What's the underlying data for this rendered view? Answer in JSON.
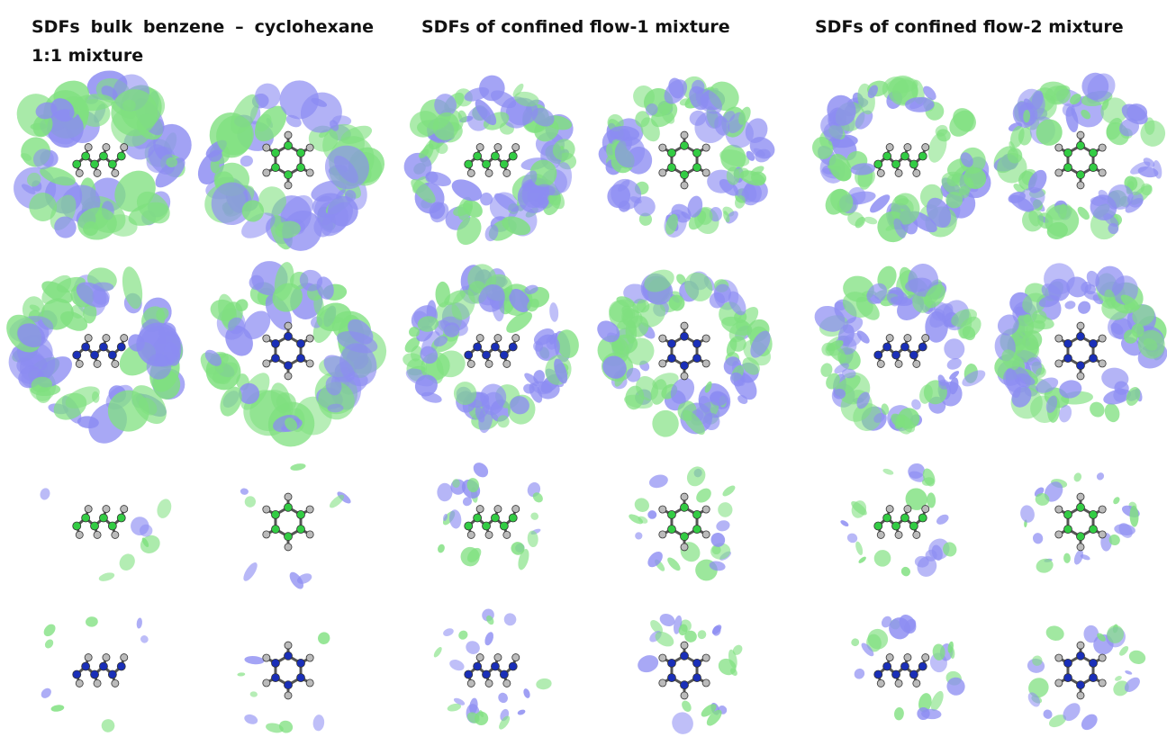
{
  "titles": [
    "SDFs bulk benzene – cyclohexane 1:1 mixture",
    "SDFs of confined flow-1 mixture",
    "SDFs of confined flow-2 mixture"
  ]
}
